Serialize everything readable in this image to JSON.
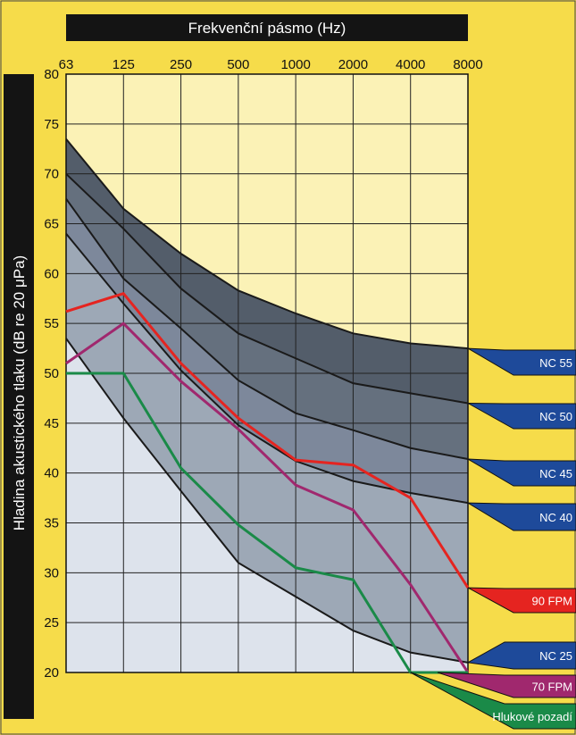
{
  "chart_data": {
    "type": "line",
    "title": "Frekvenční pásmo (Hz)",
    "ylabel": "Hladina akustického tlaku (dB re 20 μPa)",
    "x": [
      "63",
      "125",
      "250",
      "500",
      "1000",
      "2000",
      "4000",
      "8000"
    ],
    "ylim": [
      20,
      80
    ],
    "yticks": [
      20,
      25,
      30,
      35,
      40,
      45,
      50,
      55,
      60,
      65,
      70,
      75,
      80
    ],
    "grid": true,
    "nc_curves": [
      {
        "name": "NC 55",
        "values": [
          73.5,
          66.5,
          62,
          58.3,
          56,
          54,
          53,
          52.5
        ]
      },
      {
        "name": "NC 50",
        "values": [
          70,
          64.5,
          58.5,
          54,
          51.5,
          49,
          48,
          47
        ]
      },
      {
        "name": "NC 45",
        "values": [
          67.5,
          59.5,
          54.5,
          49.3,
          46,
          44.3,
          42.5,
          41.4
        ]
      },
      {
        "name": "NC 40",
        "values": [
          64,
          57,
          50.3,
          44.8,
          41.2,
          39.2,
          38,
          37
        ]
      },
      {
        "name": "NC 25",
        "values": [
          53.5,
          45.5,
          38.2,
          31,
          27.6,
          24.2,
          22,
          21
        ]
      }
    ],
    "series": [
      {
        "name": "90 FPM",
        "color": "#e52420",
        "values": [
          56.2,
          58,
          51,
          45.5,
          41.3,
          40.8,
          37.5,
          28.5
        ]
      },
      {
        "name": "70 FPM",
        "color": "#a0286e",
        "values": [
          51,
          55,
          49.2,
          44.4,
          38.8,
          36.3,
          28.8,
          20
        ]
      },
      {
        "name": "Hlukové pozadí",
        "color": "#1a8a48",
        "values": [
          50,
          50,
          40.5,
          34.8,
          30.5,
          29.3,
          20,
          20
        ]
      }
    ],
    "labels": [
      {
        "name": "NC 55",
        "color": "#1e4a9a"
      },
      {
        "name": "NC 50",
        "color": "#1e4a9a"
      },
      {
        "name": "NC 45",
        "color": "#1e4a9a"
      },
      {
        "name": "NC 40",
        "color": "#1e4a9a"
      },
      {
        "name": "90 FPM",
        "color": "#e52420"
      },
      {
        "name": "NC 25",
        "color": "#1e4a9a"
      },
      {
        "name": "70 FPM",
        "color": "#a0286e"
      },
      {
        "name": "Hlukové pozadí",
        "color": "#1a8a48"
      }
    ]
  }
}
